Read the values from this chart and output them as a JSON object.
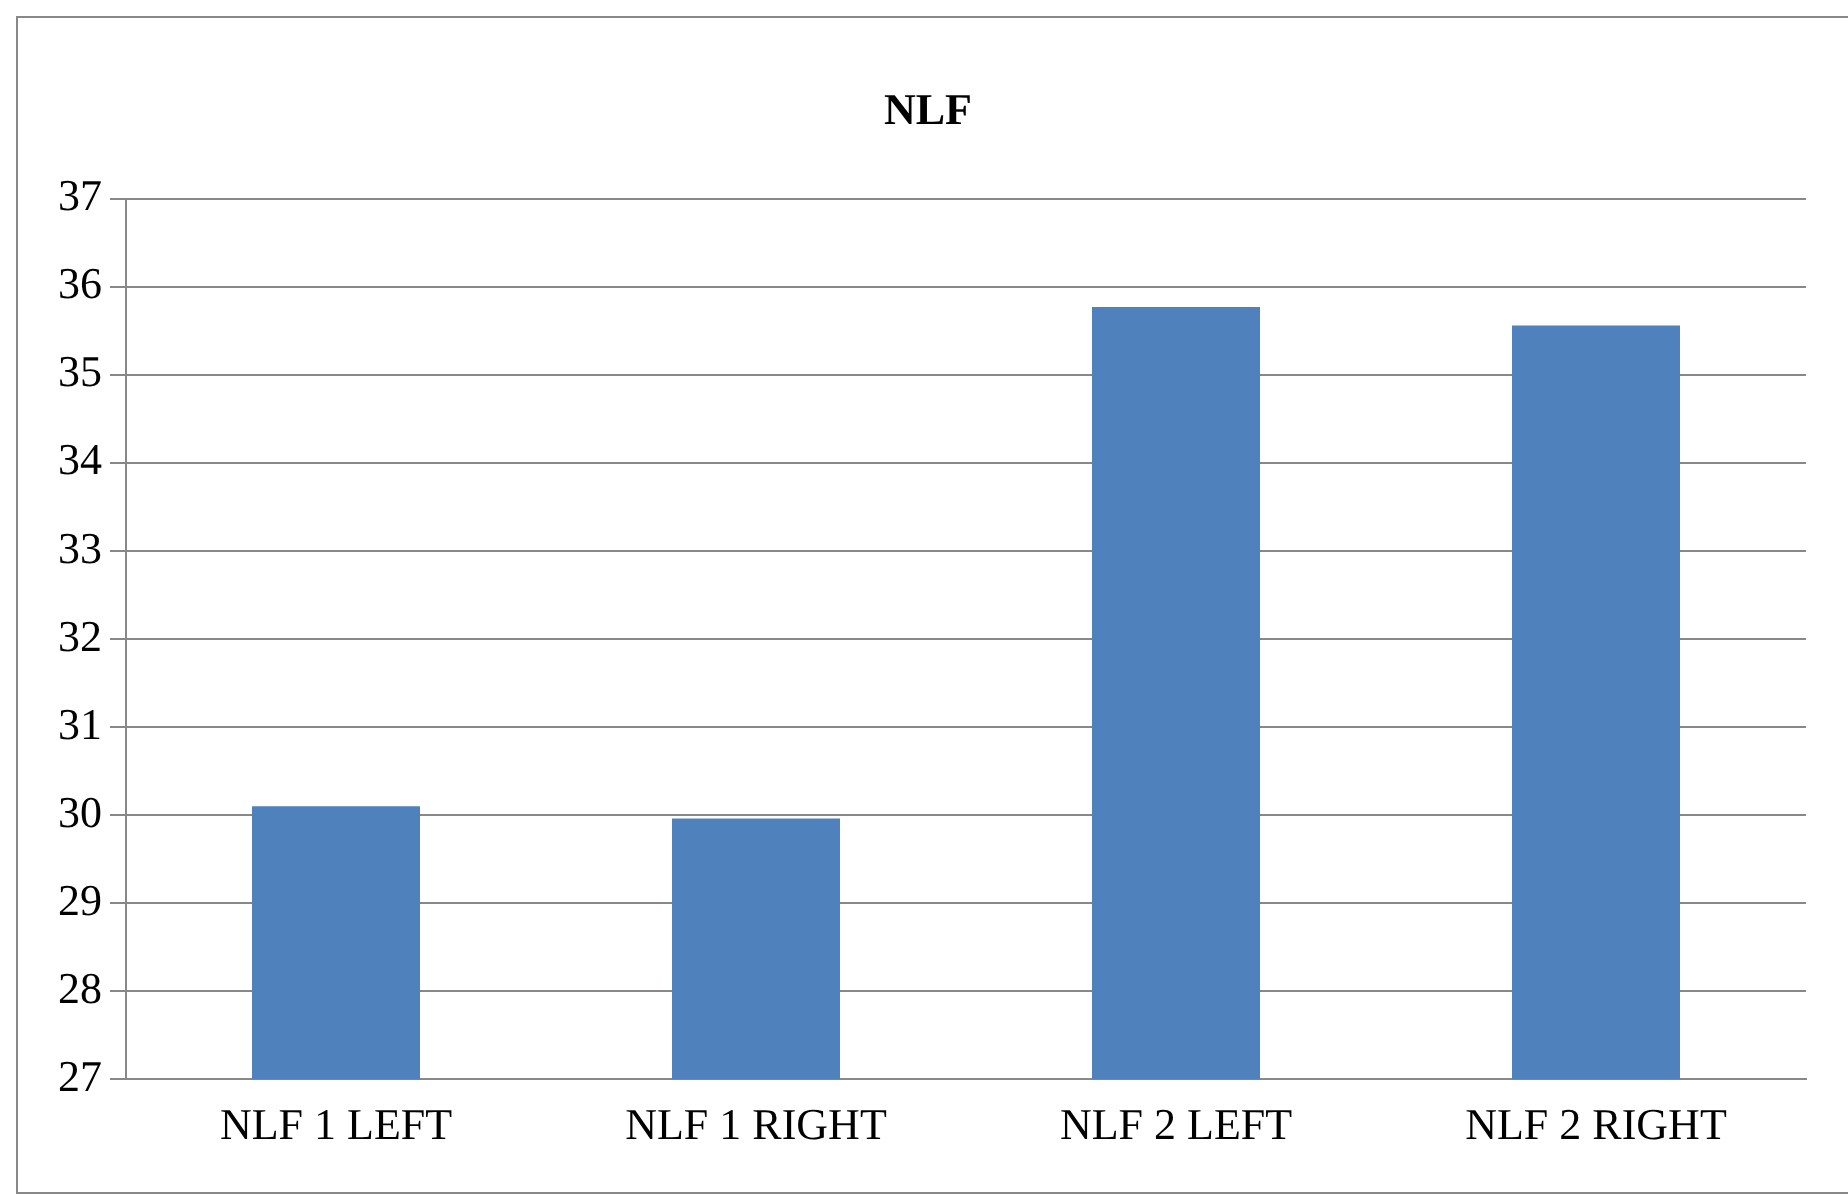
{
  "chart_data": {
    "type": "bar",
    "title": "NLF",
    "categories": [
      "NLF 1 LEFT",
      "NLF 1 RIGHT",
      "NLF 2 LEFT",
      "NLF 2 RIGHT"
    ],
    "values": [
      30.1,
      29.96,
      35.77,
      35.56
    ],
    "color": "#4f81bd",
    "ylim": [
      27,
      37
    ],
    "yticks": [
      27,
      28,
      29,
      30,
      31,
      32,
      33,
      34,
      35,
      36,
      37
    ],
    "grid": "y",
    "legend": false
  }
}
